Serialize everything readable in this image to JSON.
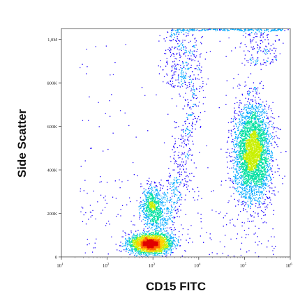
{
  "chart_data": {
    "type": "scatter",
    "subtype": "flow-cytometry-density-dot-plot",
    "xlabel": "CD15 FITC",
    "ylabel": "Side Scatter",
    "x_scale": "log",
    "xlim": [
      10,
      1000000
    ],
    "ylim": [
      0,
      1050000
    ],
    "x_ticks": [
      {
        "value": 10,
        "base": "10",
        "exp": "1"
      },
      {
        "value": 100,
        "base": "10",
        "exp": "2"
      },
      {
        "value": 1000,
        "base": "10",
        "exp": "3"
      },
      {
        "value": 10000,
        "base": "10",
        "exp": "4"
      },
      {
        "value": 100000,
        "base": "10",
        "exp": "5"
      },
      {
        "value": 1000000,
        "base": "10",
        "exp": "6"
      }
    ],
    "y_ticks": [
      {
        "value": 0,
        "label": "0"
      },
      {
        "value": 200000,
        "label": "200K"
      },
      {
        "value": 400000,
        "label": "400K"
      },
      {
        "value": 600000,
        "label": "600K"
      },
      {
        "value": 800000,
        "label": "800K"
      },
      {
        "value": 1000000,
        "label": "1,0M"
      }
    ],
    "grid": false,
    "legend": "none",
    "colormap": [
      "#1a00ff",
      "#00a8ff",
      "#00e0a0",
      "#c8f000",
      "#ffd000",
      "#ff6a00",
      "#e00000"
    ],
    "populations": [
      {
        "name": "CD15-negative low-SSC cluster",
        "x_center": 900,
        "y_center": 60000,
        "x_spread_decades": 0.22,
        "y_spread": 22000,
        "density": "high"
      },
      {
        "name": "intermediate SSC cluster",
        "x_center": 1000,
        "y_center": 230000,
        "x_spread_decades": 0.12,
        "y_spread": 45000,
        "density": "medium"
      },
      {
        "name": "CD15-positive granulocytes",
        "x_center": 150000,
        "y_center": 480000,
        "x_spread_decades": 0.2,
        "y_spread": 110000,
        "density": "high"
      },
      {
        "name": "saturated high-SSC events",
        "x_center": 5000,
        "y_center": 800000,
        "x_spread_decades": 0.25,
        "y_spread": 150000,
        "density": "low"
      }
    ]
  }
}
